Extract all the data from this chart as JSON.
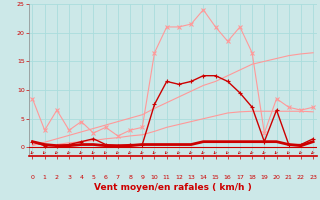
{
  "x": [
    0,
    1,
    2,
    3,
    4,
    5,
    6,
    7,
    8,
    9,
    10,
    11,
    12,
    13,
    14,
    15,
    16,
    17,
    18,
    19,
    20,
    21,
    22,
    23
  ],
  "series": [
    {
      "name": "max_gusts_light",
      "color": "#ff9999",
      "linewidth": 0.8,
      "marker": "x",
      "markersize": 2.5,
      "zorder": 2,
      "y": [
        8.5,
        3.0,
        6.5,
        3.0,
        4.5,
        2.5,
        3.5,
        2.0,
        3.0,
        3.5,
        16.5,
        21.0,
        21.0,
        21.5,
        24.0,
        21.0,
        18.5,
        21.0,
        16.5,
        2.5,
        8.5,
        7.0,
        6.5,
        7.0
      ]
    },
    {
      "name": "linear_trend_upper",
      "color": "#ff9999",
      "linewidth": 0.8,
      "marker": null,
      "markersize": 0,
      "zorder": 1,
      "y": [
        0.3,
        0.9,
        1.5,
        2.1,
        2.7,
        3.3,
        3.9,
        4.5,
        5.1,
        5.7,
        6.8,
        7.8,
        8.8,
        9.8,
        10.8,
        11.5,
        12.5,
        13.5,
        14.5,
        15.0,
        15.5,
        16.0,
        16.3,
        16.5
      ]
    },
    {
      "name": "linear_trend_lower",
      "color": "#ff9999",
      "linewidth": 0.8,
      "marker": null,
      "markersize": 0,
      "zorder": 1,
      "y": [
        0.5,
        0.5,
        0.5,
        0.8,
        1.0,
        1.2,
        1.5,
        1.7,
        2.0,
        2.2,
        2.8,
        3.5,
        4.0,
        4.5,
        5.0,
        5.5,
        6.0,
        6.2,
        6.3,
        6.3,
        6.3,
        6.3,
        6.3,
        6.2
      ]
    },
    {
      "name": "avg_wind",
      "color": "#cc0000",
      "linewidth": 1.0,
      "marker": "+",
      "markersize": 3,
      "zorder": 4,
      "y": [
        1.0,
        0.3,
        0.3,
        0.5,
        1.0,
        1.5,
        0.5,
        0.3,
        0.5,
        0.5,
        7.5,
        11.5,
        11.0,
        11.5,
        12.5,
        12.5,
        11.5,
        9.5,
        7.0,
        1.0,
        6.5,
        0.5,
        0.5,
        1.5
      ]
    },
    {
      "name": "flat_bottom",
      "color": "#cc0000",
      "linewidth": 2.0,
      "marker": null,
      "markersize": 0,
      "zorder": 3,
      "y": [
        1.0,
        0.5,
        0.3,
        0.3,
        0.5,
        0.5,
        0.3,
        0.3,
        0.3,
        0.5,
        0.5,
        0.5,
        0.5,
        0.5,
        1.0,
        1.0,
        1.0,
        1.0,
        1.0,
        1.0,
        1.0,
        0.5,
        0.3,
        1.0
      ]
    }
  ],
  "xlim": [
    -0.3,
    23.3
  ],
  "ylim": [
    -1.5,
    25
  ],
  "yticks": [
    0,
    5,
    10,
    15,
    20,
    25
  ],
  "xticks": [
    0,
    1,
    2,
    3,
    4,
    5,
    6,
    7,
    8,
    9,
    10,
    11,
    12,
    13,
    14,
    15,
    16,
    17,
    18,
    19,
    20,
    21,
    22,
    23
  ],
  "xlabel": "Vent moyen/en rafales ( km/h )",
  "xlabel_color": "#cc0000",
  "xlabel_fontsize": 6.5,
  "tick_color": "#cc0000",
  "tick_fontsize": 4.5,
  "background_color": "#cce8e8",
  "grid_color": "#aadddd",
  "axis_color": "#cc0000",
  "arrow_color": "#cc0000"
}
